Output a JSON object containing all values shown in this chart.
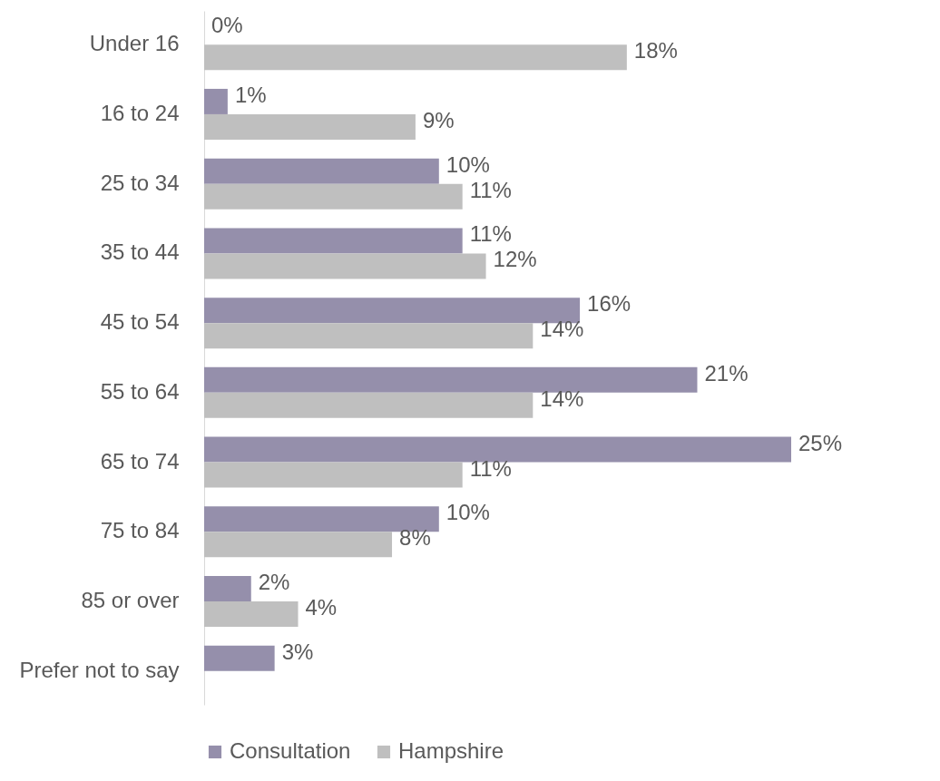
{
  "chart_data": {
    "type": "bar",
    "orientation": "horizontal",
    "legend": "bottom",
    "categories": [
      "Under 16",
      "16 to 24",
      "25 to 34",
      "35 to 44",
      "45 to 54",
      "55 to 64",
      "65 to 74",
      "75 to 84",
      "85 or over",
      "Prefer not to say"
    ],
    "series": [
      {
        "name": "Consultation",
        "color": "#958fab",
        "values": [
          0,
          1,
          10,
          11,
          16,
          21,
          25,
          10,
          2,
          3
        ],
        "value_labels": [
          "0%",
          "1%",
          "10%",
          "11%",
          "16%",
          "21%",
          "25%",
          "10%",
          "2%",
          "3%"
        ]
      },
      {
        "name": "Hampshire",
        "color": "#bfbfbf",
        "values": [
          18,
          9,
          11,
          12,
          14,
          14,
          11,
          8,
          4,
          null
        ],
        "value_labels": [
          "18%",
          "9%",
          "11%",
          "12%",
          "14%",
          "14%",
          "11%",
          "8%",
          "4%",
          null
        ]
      }
    ]
  }
}
